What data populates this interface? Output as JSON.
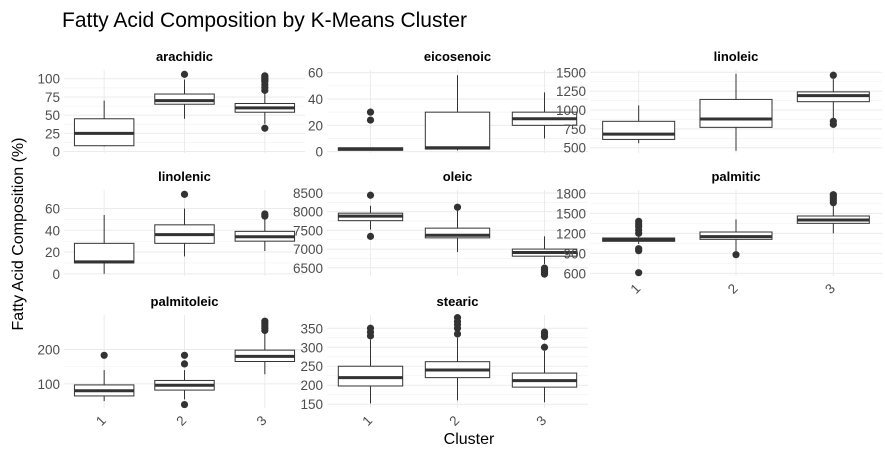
{
  "chart_data": {
    "type": "boxplot",
    "title": "Fatty Acid Composition by K-Means Cluster",
    "xlabel": "Cluster",
    "ylabel": "Fatty Acid Composition (%)",
    "categories": [
      "1",
      "2",
      "3"
    ],
    "grid": true,
    "colors": {
      "box_fill": "#ffffff",
      "box_stroke": "#333333",
      "grid": "#ebebeb",
      "text": "#000000",
      "axis_text": "#4d4d4d"
    },
    "panels": [
      {
        "name": "arachidic",
        "ylim": [
          -2,
          112
        ],
        "yticks": [
          0,
          25,
          50,
          75,
          100
        ],
        "ytick_labels": [
          "0",
          "25",
          "50",
          "75",
          "100"
        ],
        "boxes": [
          {
            "cluster": "1",
            "min": 7,
            "q1": 8,
            "median": 25,
            "q3": 45,
            "max": 70,
            "outliers": []
          },
          {
            "cluster": "2",
            "min": 45,
            "q1": 65,
            "median": 70,
            "q3": 79,
            "max": 99,
            "outliers": [
              106
            ]
          },
          {
            "cluster": "3",
            "min": 38,
            "q1": 54,
            "median": 60,
            "q3": 66,
            "max": 82,
            "outliers": [
              32,
              84,
              88,
              92,
              96,
              98,
              100,
              102,
              104
            ]
          }
        ]
      },
      {
        "name": "eicosenoic",
        "ylim": [
          -1,
          62
        ],
        "yticks": [
          0,
          20,
          40,
          60
        ],
        "ytick_labels": [
          "0",
          "20",
          "40",
          "60"
        ],
        "boxes": [
          {
            "cluster": "1",
            "min": 1,
            "q1": 1,
            "median": 2,
            "q3": 3,
            "max": 3,
            "outliers": [
              24,
              30
            ]
          },
          {
            "cluster": "2",
            "min": 1,
            "q1": 2,
            "median": 3,
            "q3": 30,
            "max": 58,
            "outliers": []
          },
          {
            "cluster": "3",
            "min": 10,
            "q1": 20,
            "median": 25,
            "q3": 30,
            "max": 45,
            "outliers": []
          }
        ]
      },
      {
        "name": "linoleic",
        "ylim": [
          430,
          1530
        ],
        "yticks": [
          500,
          750,
          1000,
          1250,
          1500
        ],
        "ytick_labels": [
          "500",
          "750",
          "1000",
          "1250",
          "1500"
        ],
        "boxes": [
          {
            "cluster": "1",
            "min": 560,
            "q1": 610,
            "median": 680,
            "q3": 850,
            "max": 1060,
            "outliers": []
          },
          {
            "cluster": "2",
            "min": 460,
            "q1": 770,
            "median": 880,
            "q3": 1140,
            "max": 1480,
            "outliers": []
          },
          {
            "cluster": "3",
            "min": 880,
            "q1": 1110,
            "median": 1190,
            "q3": 1240,
            "max": 1410,
            "outliers": [
              810,
              850,
              1460
            ]
          }
        ]
      },
      {
        "name": "linolenic",
        "ylim": [
          -2,
          77
        ],
        "yticks": [
          0,
          20,
          40,
          60
        ],
        "ytick_labels": [
          "0",
          "20",
          "40",
          "60"
        ],
        "boxes": [
          {
            "cluster": "1",
            "min": 0,
            "q1": 10,
            "median": 11,
            "q3": 28,
            "max": 54,
            "outliers": []
          },
          {
            "cluster": "2",
            "min": 16,
            "q1": 28,
            "median": 36,
            "q3": 45,
            "max": 60,
            "outliers": [
              73
            ]
          },
          {
            "cluster": "3",
            "min": 21,
            "q1": 30,
            "median": 34,
            "q3": 39,
            "max": 50,
            "outliers": [
              53,
              55
            ]
          }
        ]
      },
      {
        "name": "oleic",
        "ylim": [
          6280,
          8580
        ],
        "yticks": [
          6500,
          7000,
          7500,
          8000,
          8500
        ],
        "ytick_labels": [
          "6500",
          "7000",
          "7500",
          "8000",
          "8500"
        ],
        "boxes": [
          {
            "cluster": "1",
            "min": 7520,
            "q1": 7760,
            "median": 7880,
            "q3": 7960,
            "max": 8160,
            "outliers": [
              7340,
              8440
            ]
          },
          {
            "cluster": "2",
            "min": 6920,
            "q1": 7300,
            "median": 7370,
            "q3": 7560,
            "max": 8080,
            "outliers": [
              8120
            ]
          },
          {
            "cluster": "3",
            "min": 6600,
            "q1": 6810,
            "median": 6910,
            "q3": 7000,
            "max": 7340,
            "outliers": [
              6330,
              6370,
              6410,
              6450,
              6490
            ]
          }
        ]
      },
      {
        "name": "palmitic",
        "ylim": [
          560,
          1850
        ],
        "yticks": [
          600,
          900,
          1200,
          1500,
          1800
        ],
        "ytick_labels": [
          "600",
          "900",
          "1200",
          "1500",
          "1800"
        ],
        "boxes": [
          {
            "cluster": "1",
            "min": 1040,
            "q1": 1080,
            "median": 1100,
            "q3": 1130,
            "max": 1160,
            "outliers": [
              610,
              940,
              970,
              1200,
              1250,
              1300,
              1340,
              1380
            ]
          },
          {
            "cluster": "2",
            "min": 920,
            "q1": 1110,
            "median": 1150,
            "q3": 1220,
            "max": 1410,
            "outliers": [
              880
            ]
          },
          {
            "cluster": "3",
            "min": 1200,
            "q1": 1350,
            "median": 1400,
            "q3": 1460,
            "max": 1620,
            "outliers": [
              1660,
              1700,
              1730,
              1760,
              1780
            ]
          }
        ]
      },
      {
        "name": "palmitoleic",
        "ylim": [
          30,
          300
        ],
        "yticks": [
          100,
          200
        ],
        "ytick_labels": [
          "100",
          "200"
        ],
        "boxes": [
          {
            "cluster": "1",
            "min": 50,
            "q1": 65,
            "median": 80,
            "q3": 97,
            "max": 140,
            "outliers": [
              183
            ]
          },
          {
            "cluster": "2",
            "min": 55,
            "q1": 82,
            "median": 96,
            "q3": 110,
            "max": 140,
            "outliers": [
              40,
              158,
              183
            ]
          },
          {
            "cluster": "3",
            "min": 128,
            "q1": 165,
            "median": 180,
            "q3": 198,
            "max": 245,
            "outliers": [
              255,
              262,
              268,
              275,
              282
            ]
          }
        ]
      },
      {
        "name": "stearic",
        "ylim": [
          140,
          385
        ],
        "yticks": [
          150,
          200,
          250,
          300,
          350
        ],
        "ytick_labels": [
          "150",
          "200",
          "250",
          "300",
          "350"
        ],
        "boxes": [
          {
            "cluster": "1",
            "min": 152,
            "q1": 198,
            "median": 220,
            "q3": 250,
            "max": 320,
            "outliers": [
              330,
              340,
              350
            ]
          },
          {
            "cluster": "2",
            "min": 160,
            "q1": 220,
            "median": 240,
            "q3": 262,
            "max": 325,
            "outliers": [
              335,
              350,
              360,
              368,
              378
            ]
          },
          {
            "cluster": "3",
            "min": 155,
            "q1": 195,
            "median": 212,
            "q3": 232,
            "max": 290,
            "outliers": [
              300,
              328,
              335,
              340
            ]
          }
        ]
      }
    ]
  }
}
